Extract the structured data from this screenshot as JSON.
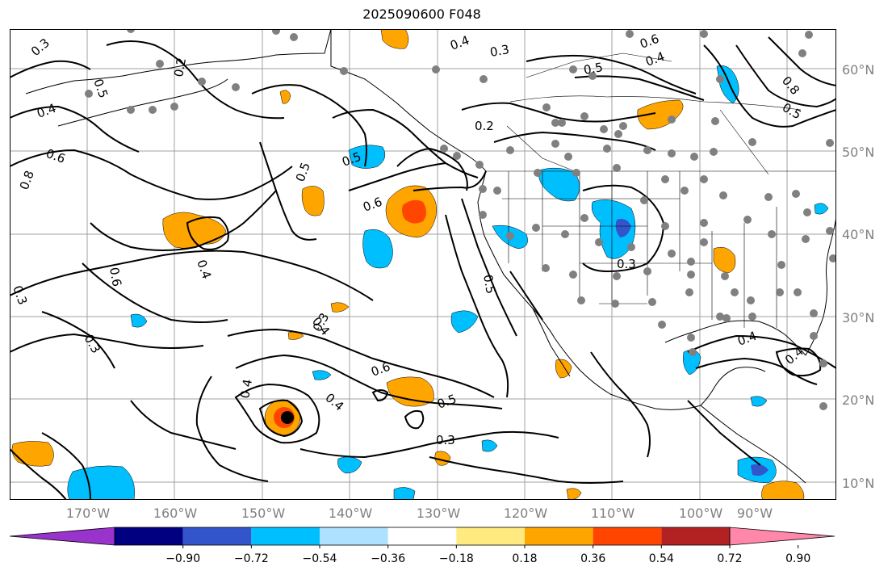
{
  "title": "2025090600 F048",
  "latitude_labels": [
    "60°N",
    "50°N",
    "40°N",
    "30°N",
    "20°N",
    "10°N"
  ],
  "longitude_labels": [
    "170°W",
    "160°W",
    "150°W",
    "140°W",
    "130°W",
    "120°W",
    "110°W",
    "100°W",
    "90°W"
  ],
  "colorbar": {
    "ticks": [
      "−0.90",
      "−0.72",
      "−0.54",
      "−0.36",
      "−0.18",
      "0.18",
      "0.36",
      "0.54",
      "0.72",
      "0.90"
    ],
    "colors": [
      "#9933cc",
      "#000080",
      "#3355cc",
      "#00bfff",
      "#aee0ff",
      "#ffffff",
      "#ffea80",
      "#ffa500",
      "#ff4500",
      "#b22222",
      "#ff88aa"
    ]
  },
  "contour_labels": [
    "0.3",
    "0.4",
    "0.5",
    "0.6",
    "0.8",
    "0.2",
    "0.4",
    "0.6",
    "0.5",
    "0.3",
    "0.6",
    "0.4",
    "0.5",
    "0.3",
    "0.2",
    "0.5",
    "0.3",
    "0.4",
    "0.3",
    "0.6",
    "0.4",
    "0.5",
    "0.3",
    "0.4",
    "0.6",
    "0.3",
    "0.4",
    "0.8",
    "0.5",
    "0.5",
    "0.4",
    "0.4"
  ],
  "fill_colors": {
    "orange": "#ffa500",
    "red_orange": "#ff4500",
    "light_blue": "#00bfff",
    "mid_blue": "#3355cc"
  }
}
